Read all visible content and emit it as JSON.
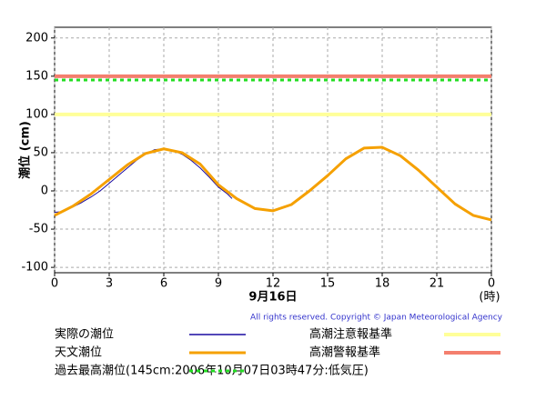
{
  "chart_data": {
    "type": "line",
    "y_label": "潮位 (cm)",
    "x_label": "9月16日",
    "x_unit": "(時)",
    "copyright": "All rights reserved. Copyright © Japan Meteorological Agency",
    "xlim": [
      0,
      24
    ],
    "ylim": [
      -107,
      214
    ],
    "xticks": [
      0,
      3,
      6,
      9,
      12,
      15,
      18,
      21,
      {
        "value": 24,
        "label": "0"
      }
    ],
    "yticks": [
      -100,
      -50,
      0,
      50,
      100,
      150,
      200
    ],
    "grid": true,
    "series": [
      {
        "name": "実際の潮位",
        "color": "#1a0aa0",
        "width": 1,
        "x": [
          0,
          0.5,
          1,
          1.5,
          2,
          2.5,
          3,
          3.5,
          4,
          4.5,
          5,
          5.5,
          6,
          6.5,
          7,
          7.5,
          8,
          8.5,
          9,
          9.5,
          9.75
        ],
        "values": [
          -28,
          -27,
          -21,
          -15,
          -8,
          0,
          10,
          20,
          30,
          40,
          48,
          54,
          55,
          53,
          48,
          40,
          30,
          18,
          5,
          -4,
          -10
        ]
      },
      {
        "name": "天文潮位",
        "color": "#f5a000",
        "width": 3,
        "x": [
          0,
          1,
          2,
          3,
          4,
          5,
          6,
          7,
          8,
          9,
          10,
          11,
          12,
          13,
          14,
          15,
          16,
          17,
          18,
          19,
          20,
          21,
          22,
          23,
          24
        ],
        "values": [
          -32,
          -20,
          -4,
          15,
          34,
          49,
          55,
          50,
          35,
          8,
          -10,
          -23,
          -26,
          -18,
          0,
          20,
          42,
          56,
          57,
          46,
          27,
          5,
          -17,
          -32,
          -38
        ]
      }
    ],
    "reference_lines": [
      {
        "name": "高潮注意報基準",
        "value": 100,
        "color": "#ffff99",
        "width": 4,
        "dashed": false
      },
      {
        "name": "高潮警報基準",
        "value": 150,
        "color": "#f47f6e",
        "width": 4,
        "dashed": false
      },
      {
        "name": "過去最高潮位(145cm:2006年10月07日03時47分:低気圧)",
        "value": 145,
        "color": "#22dd22",
        "width": 3,
        "dashed": true
      }
    ]
  }
}
